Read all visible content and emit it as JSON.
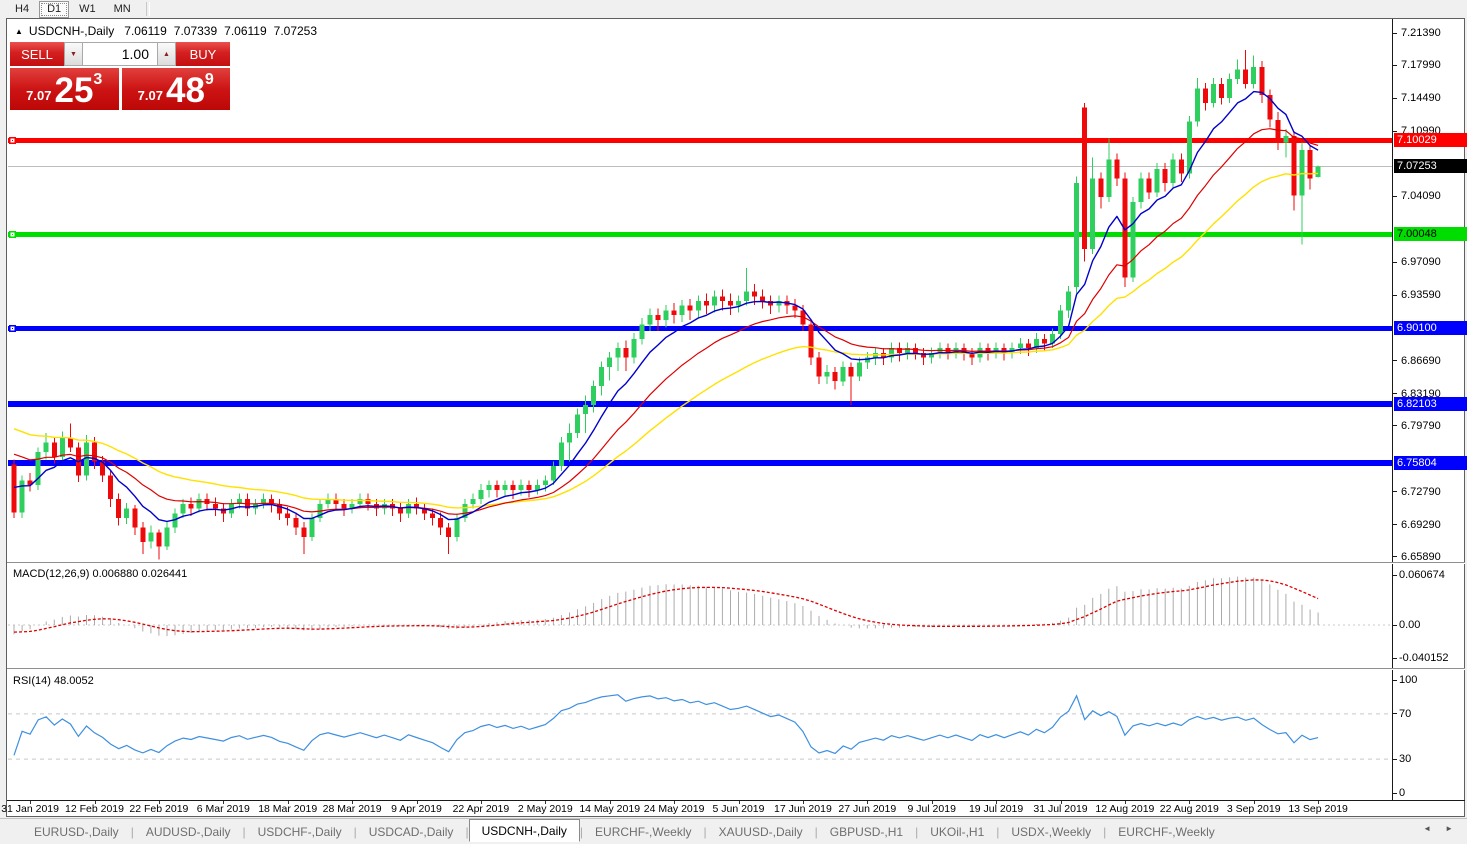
{
  "toolbar": {
    "buttons": [
      {
        "label": "H4",
        "active": false
      },
      {
        "label": "D1",
        "active": true
      },
      {
        "label": "W1",
        "active": false
      },
      {
        "label": "MN",
        "active": false
      }
    ]
  },
  "header": {
    "collapse_arrow": "▲",
    "symbol_title": "USDCNH-,Daily",
    "open": "7.06119",
    "high": "7.07339",
    "low": "7.06119",
    "close": "7.07253"
  },
  "trade_panel": {
    "sell_label": "SELL",
    "buy_label": "BUY",
    "volume": "1.00",
    "spinner_down": "▼",
    "spinner_up": "▲",
    "sell_price": {
      "small": "7.07",
      "big": "25",
      "sup": "3"
    },
    "buy_price": {
      "small": "7.07",
      "big": "48",
      "sup": "9"
    }
  },
  "price_axis": {
    "ticks": [
      {
        "label": "7.21390",
        "price": 7.2139
      },
      {
        "label": "7.17990",
        "price": 7.1799
      },
      {
        "label": "7.14490",
        "price": 7.1449
      },
      {
        "label": "7.10990",
        "price": 7.1099
      },
      {
        "label": "7.04090",
        "price": 7.0409
      },
      {
        "label": "6.97090",
        "price": 6.9709
      },
      {
        "label": "6.93590",
        "price": 6.9359
      },
      {
        "label": "6.86690",
        "price": 6.8669
      },
      {
        "label": "6.83190",
        "price": 6.8319
      },
      {
        "label": "6.79790",
        "price": 6.7979
      },
      {
        "label": "6.72790",
        "price": 6.7279
      },
      {
        "label": "6.69290",
        "price": 6.6929
      },
      {
        "label": "6.65890",
        "price": 6.6589
      }
    ]
  },
  "levels": [
    {
      "label": "7.10029",
      "price": 7.10029,
      "color": "#ff0000",
      "text_color": "#ffffff",
      "thickness": 5,
      "handle": true
    },
    {
      "label": "7.00048",
      "price": 7.00048,
      "color": "#00dd00",
      "text_color": "#000000",
      "thickness": 5,
      "handle": true
    },
    {
      "label": "6.90100",
      "price": 6.901,
      "color": "#0000ff",
      "text_color": "#ffffff",
      "thickness": 5,
      "handle": true
    },
    {
      "label": "6.82103",
      "price": 6.82103,
      "color": "#0000ff",
      "text_color": "#ffffff",
      "thickness": 6,
      "handle": false
    },
    {
      "label": "6.75804",
      "price": 6.75804,
      "color": "#0000ff",
      "text_color": "#ffffff",
      "thickness": 6,
      "handle": false
    }
  ],
  "current_price": {
    "label": "7.07253",
    "price": 7.07253,
    "line_color": "#bdbdbd",
    "badge_bg": "#000000",
    "badge_text": "#ffffff"
  },
  "chart_data": {
    "type": "candlestick",
    "symbol": "USDCNH-",
    "timeframe": "Daily",
    "bull_color": "#2fcf5f",
    "bear_color": "#ee0a0a",
    "ma_lines": [
      {
        "name": "ma-fast",
        "period": 8,
        "seed": 6.74,
        "color": "#0000cc",
        "width": 1.4
      },
      {
        "name": "ma-medium",
        "period": 18,
        "seed": 6.775,
        "color": "#dd0000",
        "width": 1.2
      },
      {
        "name": "ma-slow",
        "period": 34,
        "seed": 6.8,
        "color": "#ffe100",
        "width": 1.4
      }
    ],
    "candles": [
      [
        6.757,
        6.762,
        6.7,
        6.706
      ],
      [
        6.706,
        6.745,
        6.7,
        6.74
      ],
      [
        6.74,
        6.748,
        6.728,
        6.735
      ],
      [
        6.735,
        6.775,
        6.73,
        6.77
      ],
      [
        6.77,
        6.79,
        6.762,
        6.78
      ],
      [
        6.78,
        6.786,
        6.758,
        6.765
      ],
      [
        6.765,
        6.792,
        6.76,
        6.785
      ],
      [
        6.785,
        6.8,
        6.77,
        6.775
      ],
      [
        6.775,
        6.78,
        6.738,
        6.745
      ],
      [
        6.745,
        6.788,
        6.74,
        6.78
      ],
      [
        6.78,
        6.786,
        6.752,
        6.76
      ],
      [
        6.76,
        6.766,
        6.738,
        6.745
      ],
      [
        6.745,
        6.75,
        6.712,
        6.72
      ],
      [
        6.72,
        6.726,
        6.692,
        6.7
      ],
      [
        6.7,
        6.716,
        6.694,
        6.71
      ],
      [
        6.71,
        6.714,
        6.682,
        6.69
      ],
      [
        6.69,
        6.696,
        6.662,
        6.675
      ],
      [
        6.675,
        6.692,
        6.668,
        6.685
      ],
      [
        6.685,
        6.688,
        6.656,
        6.67
      ],
      [
        6.67,
        6.696,
        6.666,
        6.69
      ],
      [
        6.69,
        6.71,
        6.684,
        6.705
      ],
      [
        6.705,
        6.72,
        6.7,
        6.715
      ],
      [
        6.715,
        6.722,
        6.702,
        6.71
      ],
      [
        6.71,
        6.726,
        6.706,
        6.72
      ],
      [
        6.72,
        6.726,
        6.708,
        6.715
      ],
      [
        6.715,
        6.722,
        6.702,
        6.71
      ],
      [
        6.71,
        6.716,
        6.696,
        6.705
      ],
      [
        6.705,
        6.72,
        6.7,
        6.715
      ],
      [
        6.715,
        6.726,
        6.71,
        6.72
      ],
      [
        6.72,
        6.726,
        6.702,
        6.71
      ],
      [
        6.71,
        6.72,
        6.704,
        6.715
      ],
      [
        6.715,
        6.726,
        6.71,
        6.72
      ],
      [
        6.72,
        6.725,
        6.706,
        6.715
      ],
      [
        6.715,
        6.72,
        6.698,
        6.705
      ],
      [
        6.705,
        6.712,
        6.692,
        6.7
      ],
      [
        6.7,
        6.706,
        6.682,
        6.69
      ],
      [
        6.69,
        6.696,
        6.662,
        6.68
      ],
      [
        6.68,
        6.705,
        6.676,
        6.7
      ],
      [
        6.7,
        6.72,
        6.696,
        6.715
      ],
      [
        6.715,
        6.726,
        6.71,
        6.72
      ],
      [
        6.72,
        6.726,
        6.708,
        6.715
      ],
      [
        6.715,
        6.72,
        6.702,
        6.71
      ],
      [
        6.71,
        6.72,
        6.705,
        6.715
      ],
      [
        6.715,
        6.726,
        6.71,
        6.72
      ],
      [
        6.72,
        6.726,
        6.708,
        6.715
      ],
      [
        6.715,
        6.72,
        6.702,
        6.71
      ],
      [
        6.71,
        6.72,
        6.704,
        6.715
      ],
      [
        6.715,
        6.72,
        6.702,
        6.71
      ],
      [
        6.71,
        6.716,
        6.696,
        6.705
      ],
      [
        6.705,
        6.72,
        6.7,
        6.715
      ],
      [
        6.715,
        6.722,
        6.704,
        6.71
      ],
      [
        6.71,
        6.716,
        6.698,
        6.705
      ],
      [
        6.705,
        6.71,
        6.692,
        6.7
      ],
      [
        6.7,
        6.706,
        6.682,
        6.69
      ],
      [
        6.69,
        6.695,
        6.662,
        6.68
      ],
      [
        6.68,
        6.705,
        6.675,
        6.7
      ],
      [
        6.7,
        6.72,
        6.696,
        6.715
      ],
      [
        6.715,
        6.726,
        6.71,
        6.72
      ],
      [
        6.72,
        6.736,
        6.715,
        6.73
      ],
      [
        6.73,
        6.74,
        6.722,
        6.735
      ],
      [
        6.735,
        6.74,
        6.722,
        6.73
      ],
      [
        6.73,
        6.74,
        6.724,
        6.735
      ],
      [
        6.735,
        6.74,
        6.72,
        6.73
      ],
      [
        6.73,
        6.741,
        6.724,
        6.735
      ],
      [
        6.735,
        6.74,
        6.722,
        6.73
      ],
      [
        6.73,
        6.741,
        6.725,
        6.735
      ],
      [
        6.735,
        6.745,
        6.728,
        6.74
      ],
      [
        6.74,
        6.76,
        6.735,
        6.755
      ],
      [
        6.755,
        6.786,
        6.75,
        6.78
      ],
      [
        6.78,
        6.8,
        6.76,
        6.79
      ],
      [
        6.79,
        6.816,
        6.785,
        6.81
      ],
      [
        6.81,
        6.83,
        6.79,
        6.82
      ],
      [
        6.82,
        6.846,
        6.812,
        6.84
      ],
      [
        6.84,
        6.866,
        6.83,
        6.86
      ],
      [
        6.86,
        6.876,
        6.846,
        6.87
      ],
      [
        6.87,
        6.886,
        6.856,
        6.88
      ],
      [
        6.88,
        6.888,
        6.856,
        6.87
      ],
      [
        6.87,
        6.896,
        6.864,
        6.89
      ],
      [
        6.89,
        6.912,
        6.884,
        6.905
      ],
      [
        6.905,
        6.922,
        6.898,
        6.915
      ],
      [
        6.915,
        6.922,
        6.898,
        6.91
      ],
      [
        6.91,
        6.926,
        6.902,
        6.92
      ],
      [
        6.92,
        6.928,
        6.906,
        6.915
      ],
      [
        6.915,
        6.931,
        6.908,
        6.925
      ],
      [
        6.925,
        6.932,
        6.91,
        6.92
      ],
      [
        6.92,
        6.936,
        6.912,
        6.93
      ],
      [
        6.93,
        6.938,
        6.916,
        6.925
      ],
      [
        6.925,
        6.941,
        6.918,
        6.935
      ],
      [
        6.935,
        6.942,
        6.92,
        6.93
      ],
      [
        6.93,
        6.938,
        6.915,
        6.925
      ],
      [
        6.925,
        6.936,
        6.918,
        6.93
      ],
      [
        6.93,
        6.965,
        6.925,
        6.94
      ],
      [
        6.94,
        6.948,
        6.926,
        6.935
      ],
      [
        6.935,
        6.942,
        6.922,
        6.93
      ],
      [
        6.93,
        6.936,
        6.916,
        6.925
      ],
      [
        6.925,
        6.936,
        6.918,
        6.93
      ],
      [
        6.93,
        6.936,
        6.916,
        6.925
      ],
      [
        6.925,
        6.932,
        6.912,
        6.92
      ],
      [
        6.92,
        6.926,
        6.898,
        6.905
      ],
      [
        6.905,
        6.91,
        6.862,
        6.87
      ],
      [
        6.87,
        6.876,
        6.842,
        6.85
      ],
      [
        6.85,
        6.862,
        6.842,
        6.855
      ],
      [
        6.855,
        6.86,
        6.836,
        6.845
      ],
      [
        6.845,
        6.866,
        6.84,
        6.86
      ],
      [
        6.86,
        6.865,
        6.82,
        6.85
      ],
      [
        6.85,
        6.87,
        6.845,
        6.865
      ],
      [
        6.865,
        6.876,
        6.858,
        6.87
      ],
      [
        6.87,
        6.881,
        6.862,
        6.875
      ],
      [
        6.875,
        6.88,
        6.862,
        6.87
      ],
      [
        6.87,
        6.886,
        6.865,
        6.88
      ],
      [
        6.88,
        6.886,
        6.866,
        6.875
      ],
      [
        6.875,
        6.886,
        6.868,
        6.88
      ],
      [
        6.88,
        6.885,
        6.868,
        6.875
      ],
      [
        6.875,
        6.88,
        6.862,
        6.87
      ],
      [
        6.87,
        6.881,
        6.864,
        6.875
      ],
      [
        6.875,
        6.886,
        6.869,
        6.88
      ],
      [
        6.88,
        6.885,
        6.868,
        6.875
      ],
      [
        6.875,
        6.886,
        6.869,
        6.88
      ],
      [
        6.88,
        6.885,
        6.867,
        6.875
      ],
      [
        6.875,
        6.88,
        6.862,
        6.87
      ],
      [
        6.87,
        6.886,
        6.865,
        6.88
      ],
      [
        6.88,
        6.885,
        6.867,
        6.875
      ],
      [
        6.875,
        6.886,
        6.869,
        6.88
      ],
      [
        6.88,
        6.885,
        6.867,
        6.875
      ],
      [
        6.875,
        6.886,
        6.869,
        6.88
      ],
      [
        6.88,
        6.891,
        6.874,
        6.885
      ],
      [
        6.885,
        6.89,
        6.872,
        6.88
      ],
      [
        6.88,
        6.896,
        6.875,
        6.89
      ],
      [
        6.89,
        6.895,
        6.877,
        6.885
      ],
      [
        6.885,
        6.901,
        6.88,
        6.895
      ],
      [
        6.895,
        6.926,
        6.89,
        6.92
      ],
      [
        6.92,
        6.946,
        6.912,
        6.94
      ],
      [
        6.945,
        7.062,
        6.938,
        7.055
      ],
      [
        7.135,
        7.14,
        6.972,
        6.985
      ],
      [
        6.985,
        7.082,
        6.98,
        7.06
      ],
      [
        7.06,
        7.066,
        7.028,
        7.04
      ],
      [
        7.04,
        7.102,
        7.035,
        7.08
      ],
      [
        7.08,
        7.086,
        7.052,
        7.06
      ],
      [
        7.06,
        7.066,
        6.945,
        6.955
      ],
      [
        6.955,
        7.04,
        6.95,
        7.035
      ],
      [
        7.035,
        7.066,
        7.028,
        7.06
      ],
      [
        7.06,
        7.066,
        7.038,
        7.045
      ],
      [
        7.045,
        7.076,
        7.04,
        7.07
      ],
      [
        7.07,
        7.076,
        7.046,
        7.055
      ],
      [
        7.055,
        7.086,
        7.05,
        7.08
      ],
      [
        7.08,
        7.086,
        7.056,
        7.065
      ],
      [
        7.065,
        7.126,
        7.06,
        7.12
      ],
      [
        7.12,
        7.166,
        7.115,
        7.155
      ],
      [
        7.155,
        7.161,
        7.132,
        7.14
      ],
      [
        7.14,
        7.166,
        7.135,
        7.16
      ],
      [
        7.16,
        7.166,
        7.138,
        7.145
      ],
      [
        7.145,
        7.171,
        7.14,
        7.165
      ],
      [
        7.165,
        7.186,
        7.16,
        7.175
      ],
      [
        7.175,
        7.196,
        7.155,
        7.16
      ],
      [
        7.16,
        7.19,
        7.155,
        7.178
      ],
      [
        7.178,
        7.184,
        7.14,
        7.148
      ],
      [
        7.148,
        7.154,
        7.114,
        7.122
      ],
      [
        7.122,
        7.13,
        7.09,
        7.098
      ],
      [
        7.098,
        7.112,
        7.082,
        7.105
      ],
      [
        7.105,
        7.11,
        7.026,
        7.042
      ],
      [
        7.042,
        7.098,
        6.99,
        7.09
      ],
      [
        7.09,
        7.095,
        7.048,
        7.06
      ],
      [
        7.0612,
        7.0734,
        7.061,
        7.0725
      ]
    ]
  },
  "dates": [
    "31 Jan 2019",
    "12 Feb 2019",
    "22 Feb 2019",
    "6 Mar 2019",
    "18 Mar 2019",
    "28 Mar 2019",
    "9 Apr 2019",
    "22 Apr 2019",
    "2 May 2019",
    "14 May 2019",
    "24 May 2019",
    "5 Jun 2019",
    "17 Jun 2019",
    "27 Jun 2019",
    "9 Jul 2019",
    "19 Jul 2019",
    "31 Jul 2019",
    "12 Aug 2019",
    "22 Aug 2019",
    "3 Sep 2019",
    "13 Sep 2019"
  ],
  "macd": {
    "label": "MACD(12,26,9) 0.006880 0.026441",
    "fast": 12,
    "slow": 26,
    "signal": 9,
    "hist_color": "#ababab",
    "signal_color": "#dd0000",
    "axis_ticks": [
      {
        "label": "0.060674",
        "value": 0.060674
      },
      {
        "label": "0.00",
        "value": 0
      },
      {
        "label": "-0.040152",
        "value": -0.040152
      }
    ]
  },
  "rsi": {
    "label": "RSI(14) 48.0052",
    "period": 14,
    "line_color": "#3e8fe0",
    "level_color": "#c8c8c8",
    "levels": [
      70,
      30
    ],
    "axis_ticks": [
      {
        "label": "100",
        "value": 100
      },
      {
        "label": "70",
        "value": 70
      },
      {
        "label": "30",
        "value": 30
      },
      {
        "label": "0",
        "value": 0
      }
    ]
  },
  "tabs": {
    "items": [
      {
        "label": "EURUSD-,Daily",
        "active": false
      },
      {
        "label": "AUDUSD-,Daily",
        "active": false
      },
      {
        "label": "USDCHF-,Daily",
        "active": false
      },
      {
        "label": "USDCAD-,Daily",
        "active": false
      },
      {
        "label": "USDCNH-,Daily",
        "active": true
      },
      {
        "label": "EURCHF-,Weekly",
        "active": false
      },
      {
        "label": "XAUUSD-,Daily",
        "active": false
      },
      {
        "label": "GBPUSD-,H1",
        "active": false
      },
      {
        "label": "UKOil-,H1",
        "active": false
      },
      {
        "label": "USDX-,Weekly",
        "active": false
      },
      {
        "label": "EURCHF-,Weekly",
        "active": false
      }
    ],
    "scroll_left": "◄",
    "scroll_right": "►"
  }
}
